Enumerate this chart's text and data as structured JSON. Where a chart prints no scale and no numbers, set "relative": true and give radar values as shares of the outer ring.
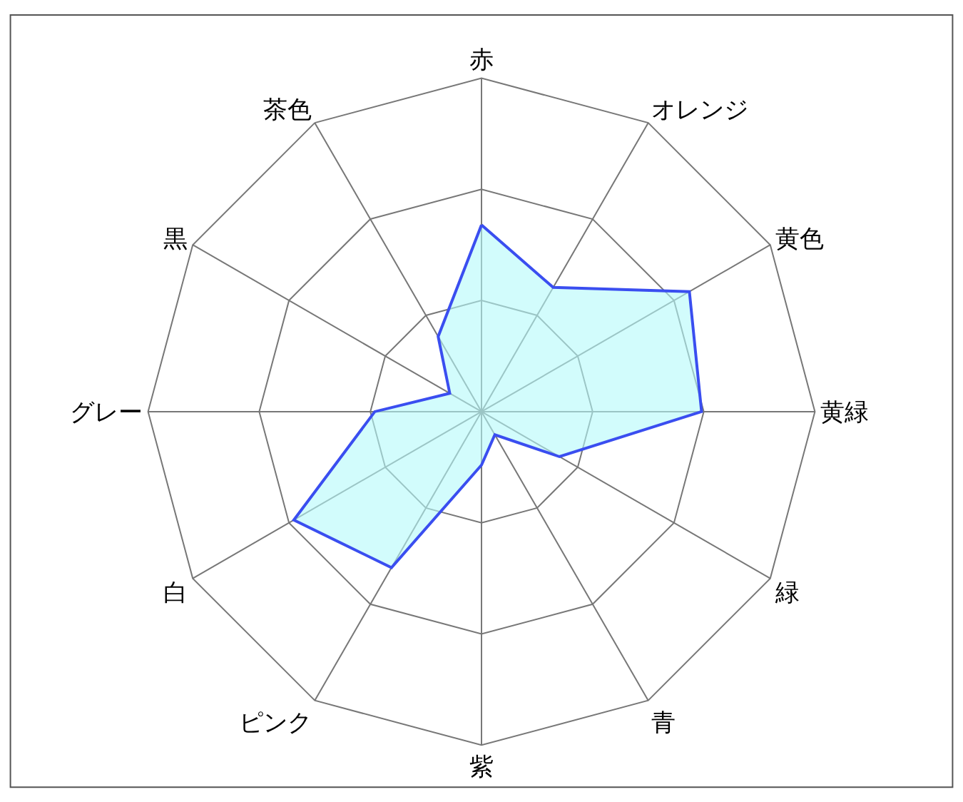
{
  "chart_data": {
    "type": "radar",
    "relative": true,
    "categories": [
      "赤",
      "オレンジ",
      "黄色",
      "黄緑",
      "緑",
      "青",
      "紫",
      "ピンク",
      "白",
      "グレー",
      "黒",
      "茶色"
    ],
    "series": [
      {
        "color": "#3a4ef0",
        "values": [
          0.56,
          0.43,
          0.72,
          0.66,
          0.27,
          0.08,
          0.16,
          0.54,
          0.65,
          0.32,
          0.11,
          0.26
        ]
      }
    ]
  }
}
